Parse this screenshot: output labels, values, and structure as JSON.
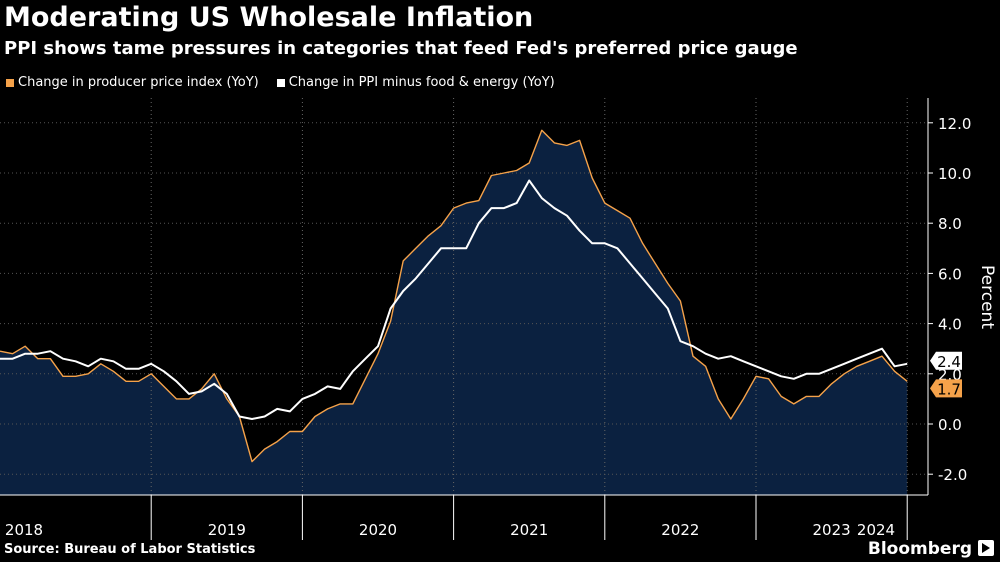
{
  "title": "Moderating US Wholesale Inflation",
  "subtitle": "PPI shows tame pressures in categories that feed Fed's preferred price gauge",
  "source": "Source: Bureau of Labor Statistics",
  "brand": "Bloomberg",
  "brand_icon": "bloomberg-play-icon",
  "colors": {
    "ppi": "#f5a24a",
    "core": "#ffffff",
    "area": "#0b2140"
  },
  "chart_data": {
    "type": "area",
    "title": "Moderating US Wholesale Inflation",
    "ylabel": "Percent",
    "ylim": [
      -2.8,
      13.0
    ],
    "yticks": [
      12.0,
      10.0,
      8.0,
      6.0,
      4.0,
      2.0,
      0.0,
      -2.0
    ],
    "ytick_labels": [
      "12.0",
      "10.0",
      "8.0",
      "6.0",
      "4.0",
      "2.0",
      "0.0",
      "-2.0"
    ],
    "x_start": "2018-01",
    "xlabels": [
      "2018",
      "2019",
      "2020",
      "2021",
      "2022",
      "2023",
      "2024"
    ],
    "series": [
      {
        "name": "Change in producer price index (YoY)",
        "color": "#f5a24a",
        "values": [
          2.9,
          2.8,
          3.1,
          2.6,
          2.6,
          1.9,
          1.9,
          2.0,
          2.4,
          2.1,
          1.7,
          1.7,
          2.0,
          1.5,
          1.0,
          1.0,
          1.4,
          2.0,
          1.0,
          0.3,
          -1.5,
          -1.0,
          -0.7,
          -0.3,
          -0.3,
          0.3,
          0.6,
          0.8,
          0.8,
          1.8,
          2.8,
          4.1,
          6.5,
          7.0,
          7.5,
          7.9,
          8.6,
          8.8,
          8.9,
          9.9,
          10.0,
          10.1,
          10.4,
          11.7,
          11.2,
          11.1,
          11.3,
          9.8,
          8.8,
          8.5,
          8.2,
          7.2,
          6.4,
          5.6,
          4.9,
          2.7,
          2.3,
          1.0,
          0.2,
          1.0,
          1.9,
          1.8,
          1.1,
          0.8,
          1.1,
          1.1,
          1.6,
          2.0,
          2.3,
          2.5,
          2.7,
          2.1,
          1.7
        ]
      },
      {
        "name": "Change in PPI minus food & energy (YoY)",
        "color": "#ffffff",
        "values": [
          2.6,
          2.6,
          2.8,
          2.8,
          2.9,
          2.6,
          2.5,
          2.3,
          2.6,
          2.5,
          2.2,
          2.2,
          2.4,
          2.1,
          1.7,
          1.2,
          1.3,
          1.6,
          1.2,
          0.3,
          0.2,
          0.3,
          0.6,
          0.5,
          1.0,
          1.2,
          1.5,
          1.4,
          2.1,
          2.6,
          3.1,
          4.6,
          5.3,
          5.8,
          6.4,
          7.0,
          7.0,
          7.0,
          8.0,
          8.6,
          8.6,
          8.8,
          9.7,
          9.0,
          8.6,
          8.3,
          7.7,
          7.2,
          7.2,
          7.0,
          6.4,
          5.8,
          5.2,
          4.6,
          3.3,
          3.1,
          2.8,
          2.6,
          2.7,
          2.5,
          2.3,
          2.1,
          1.9,
          1.8,
          2.0,
          2.0,
          2.2,
          2.4,
          2.6,
          2.8,
          3.0,
          2.3,
          2.4
        ]
      }
    ],
    "end_labels": [
      {
        "series": "Change in PPI minus food & energy (YoY)",
        "text": "2.4",
        "value": 2.4
      },
      {
        "series": "Change in producer price index (YoY)",
        "text": "1.7",
        "value": 1.7
      }
    ]
  }
}
